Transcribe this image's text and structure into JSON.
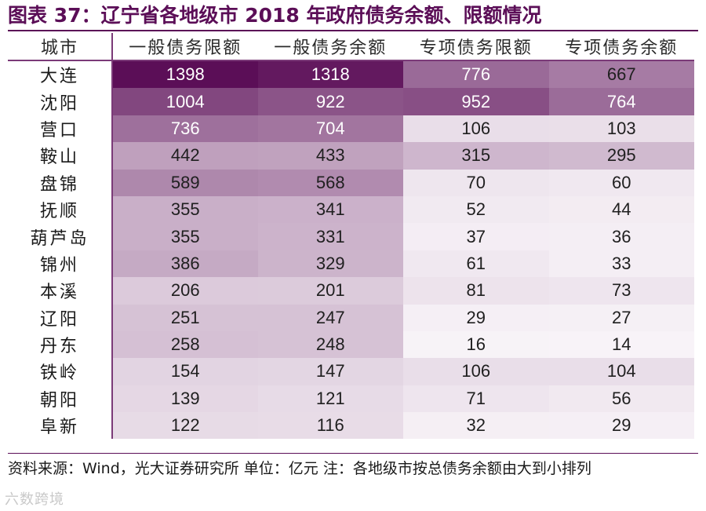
{
  "title": "图表 37：辽宁省各地级市 2018 年政府债务余额、限额情况",
  "table": {
    "headers": [
      "城市",
      "一般债务限额",
      "一般债务余额",
      "专项债务限额",
      "专项债务余额"
    ],
    "rows": [
      {
        "city": "大连",
        "values": [
          "1398",
          "1318",
          "776",
          "667"
        ]
      },
      {
        "city": "沈阳",
        "values": [
          "1004",
          "922",
          "952",
          "764"
        ]
      },
      {
        "city": "营口",
        "values": [
          "736",
          "704",
          "106",
          "103"
        ]
      },
      {
        "city": "鞍山",
        "values": [
          "442",
          "433",
          "315",
          "295"
        ]
      },
      {
        "city": "盘锦",
        "values": [
          "589",
          "568",
          "70",
          "60"
        ]
      },
      {
        "city": "抚顺",
        "values": [
          "355",
          "341",
          "52",
          "44"
        ]
      },
      {
        "city": "葫芦岛",
        "values": [
          "355",
          "331",
          "37",
          "36"
        ]
      },
      {
        "city": "锦州",
        "values": [
          "386",
          "329",
          "61",
          "33"
        ]
      },
      {
        "city": "本溪",
        "values": [
          "206",
          "201",
          "81",
          "73"
        ]
      },
      {
        "city": "辽阳",
        "values": [
          "251",
          "247",
          "29",
          "27"
        ]
      },
      {
        "city": "丹东",
        "values": [
          "258",
          "248",
          "16",
          "14"
        ]
      },
      {
        "city": "铁岭",
        "values": [
          "154",
          "147",
          "106",
          "104"
        ]
      },
      {
        "city": "朝阳",
        "values": [
          "139",
          "121",
          "71",
          "56"
        ]
      },
      {
        "city": "阜新",
        "values": [
          "122",
          "116",
          "32",
          "29"
        ]
      }
    ]
  },
  "footnote": "资料来源：Wind，光大证券研究所 单位：亿元   注：各地级市按总债务余额由大到小排列",
  "watermark": "六数跨境",
  "colors": {
    "accent": "#5b0e57",
    "cell_dark": "#5b0e57",
    "cell_light": "#fbf8fb"
  }
}
